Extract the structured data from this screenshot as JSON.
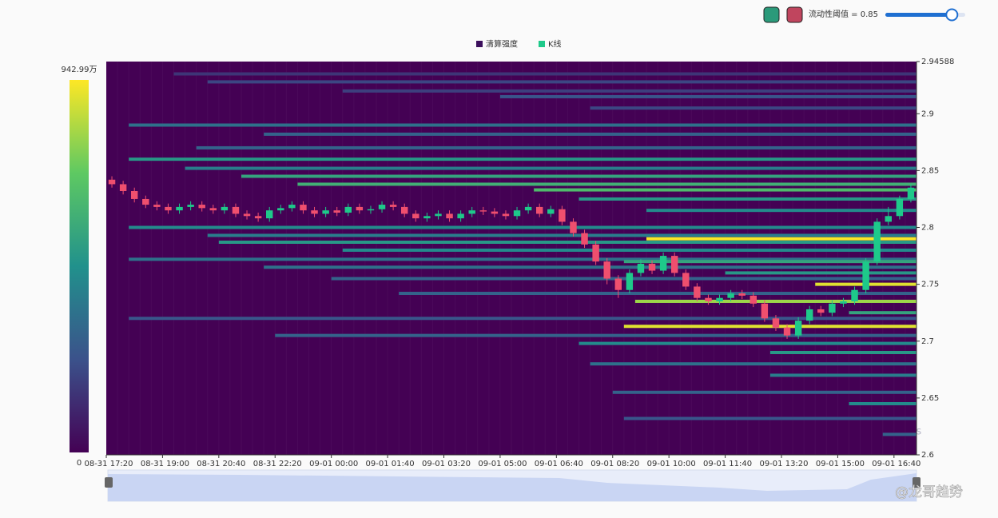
{
  "chart_data": {
    "type": "liquidation-heatmap",
    "legend": [
      {
        "name": "清算强度",
        "color": "#3b0f5c"
      },
      {
        "name": "K线",
        "color": "#1ec98a"
      }
    ],
    "threshold": {
      "value": 0.85,
      "label": "流动性阈值 = 0.85"
    },
    "watermark": "coinglass",
    "credit": "@龙哥趋势",
    "up_color": "#1ec98a",
    "down_color": "#ef4f6e",
    "colorscale": [
      "#440154",
      "#3b528b",
      "#21918c",
      "#5ec962",
      "#fde725"
    ],
    "vlim": [
      0,
      {
        "value": 9429900,
        "label": "942.99万"
      }
    ],
    "xlim": [
      0,
      72
    ],
    "xticks": [
      {
        "value": 0,
        "label": "08-31 17:20"
      },
      {
        "value": 5,
        "label": "08-31 19:00"
      },
      {
        "value": 10,
        "label": "08-31 20:40"
      },
      {
        "value": 15,
        "label": "08-31 22:20"
      },
      {
        "value": 20,
        "label": "09-01 00:00"
      },
      {
        "value": 25,
        "label": "09-01 01:40"
      },
      {
        "value": 30,
        "label": "09-01 03:20"
      },
      {
        "value": 35,
        "label": "09-01 05:00"
      },
      {
        "value": 40,
        "label": "09-01 06:40"
      },
      {
        "value": 45,
        "label": "09-01 08:20"
      },
      {
        "value": 50,
        "label": "09-01 10:00"
      },
      {
        "value": 55,
        "label": "09-01 11:40"
      },
      {
        "value": 60,
        "label": "09-01 13:20"
      },
      {
        "value": 65,
        "label": "09-01 15:00"
      },
      {
        "value": 70,
        "label": "09-01 16:40"
      }
    ],
    "ylim": [
      2.6,
      2.94588
    ],
    "yticks": [
      2.6,
      2.65,
      2.7,
      2.75,
      2.8,
      2.85,
      2.9,
      2.94588
    ],
    "bands": {
      "price": [
        2.935,
        2.928,
        2.92,
        2.915,
        2.905,
        2.89,
        2.882,
        2.87,
        2.86,
        2.852,
        2.845,
        2.838,
        2.833,
        2.825,
        2.815,
        2.8,
        2.793,
        2.787,
        2.79,
        2.78,
        2.772,
        2.77,
        2.765,
        2.76,
        2.75,
        2.755,
        2.742,
        2.735,
        2.725,
        2.72,
        2.713,
        2.705,
        2.698,
        2.69,
        2.68,
        2.67,
        2.655,
        2.645,
        2.632,
        2.618
      ],
      "start": [
        6,
        9,
        21,
        35,
        43,
        2,
        14,
        8,
        2,
        7,
        12,
        17,
        38,
        42,
        48,
        2,
        9,
        10,
        48,
        21,
        2,
        46,
        14,
        55,
        63,
        20,
        26,
        47,
        66,
        2,
        46,
        15,
        42,
        59,
        43,
        59,
        45,
        66,
        46,
        69
      ],
      "intensity": [
        1500000,
        2000000,
        1800000,
        2500000,
        2000000,
        3500000,
        3000000,
        3000000,
        5000000,
        4000000,
        5500000,
        6000000,
        6500000,
        5000000,
        4500000,
        4500000,
        4000000,
        5000000,
        9400000,
        4500000,
        3500000,
        5500000,
        3500000,
        5000000,
        9000000,
        3000000,
        3000000,
        8000000,
        5500000,
        2500000,
        9000000,
        3000000,
        4500000,
        5000000,
        3500000,
        4000000,
        3000000,
        4500000,
        2500000,
        3000000
      ]
    },
    "candles": {
      "open": [
        2.842,
        2.838,
        2.832,
        2.825,
        2.82,
        2.818,
        2.815,
        2.818,
        2.82,
        2.817,
        2.815,
        2.818,
        2.812,
        2.81,
        2.808,
        2.815,
        2.817,
        2.82,
        2.815,
        2.812,
        2.815,
        2.813,
        2.818,
        2.815,
        2.816,
        2.82,
        2.818,
        2.812,
        2.808,
        2.81,
        2.812,
        2.808,
        2.812,
        2.815,
        2.814,
        2.812,
        2.81,
        2.815,
        2.818,
        2.812,
        2.816,
        2.805,
        2.795,
        2.785,
        2.77,
        2.755,
        2.745,
        2.76,
        2.768,
        2.762,
        2.775,
        2.76,
        2.748,
        2.738,
        2.735,
        2.738,
        2.742,
        2.74,
        2.733,
        2.72,
        2.712,
        2.705,
        2.718,
        2.728,
        2.725,
        2.733,
        2.735,
        2.745,
        2.77,
        2.805,
        2.81,
        2.825
      ],
      "high": [
        2.845,
        2.841,
        2.835,
        2.828,
        2.823,
        2.821,
        2.821,
        2.823,
        2.823,
        2.82,
        2.821,
        2.821,
        2.815,
        2.813,
        2.818,
        2.82,
        2.823,
        2.823,
        2.818,
        2.818,
        2.818,
        2.821,
        2.821,
        2.819,
        2.823,
        2.823,
        2.821,
        2.815,
        2.813,
        2.815,
        2.815,
        2.815,
        2.818,
        2.818,
        2.817,
        2.815,
        2.818,
        2.821,
        2.821,
        2.819,
        2.819,
        2.808,
        2.798,
        2.788,
        2.773,
        2.758,
        2.763,
        2.772,
        2.771,
        2.778,
        2.778,
        2.763,
        2.751,
        2.741,
        2.741,
        2.745,
        2.745,
        2.743,
        2.736,
        2.723,
        2.715,
        2.721,
        2.731,
        2.731,
        2.736,
        2.738,
        2.748,
        2.773,
        2.808,
        2.818,
        2.828,
        2.838
      ],
      "low": [
        2.835,
        2.829,
        2.822,
        2.817,
        2.815,
        2.812,
        2.812,
        2.815,
        2.814,
        2.812,
        2.812,
        2.809,
        2.807,
        2.805,
        2.805,
        2.812,
        2.814,
        2.812,
        2.809,
        2.809,
        2.81,
        2.81,
        2.812,
        2.812,
        2.813,
        2.815,
        2.809,
        2.805,
        2.805,
        2.807,
        2.805,
        2.805,
        2.809,
        2.811,
        2.809,
        2.807,
        2.807,
        2.812,
        2.809,
        2.809,
        2.802,
        2.792,
        2.782,
        2.767,
        2.75,
        2.738,
        2.742,
        2.757,
        2.759,
        2.759,
        2.757,
        2.745,
        2.735,
        2.732,
        2.732,
        2.735,
        2.737,
        2.73,
        2.717,
        2.709,
        2.702,
        2.702,
        2.715,
        2.722,
        2.722,
        2.73,
        2.732,
        2.742,
        2.767,
        2.802,
        2.807,
        2.822
      ],
      "close": [
        2.838,
        2.832,
        2.825,
        2.82,
        2.818,
        2.815,
        2.818,
        2.82,
        2.817,
        2.815,
        2.818,
        2.812,
        2.81,
        2.808,
        2.815,
        2.817,
        2.82,
        2.815,
        2.812,
        2.815,
        2.813,
        2.818,
        2.815,
        2.816,
        2.82,
        2.818,
        2.812,
        2.808,
        2.81,
        2.812,
        2.808,
        2.812,
        2.815,
        2.814,
        2.812,
        2.81,
        2.815,
        2.818,
        2.812,
        2.816,
        2.805,
        2.795,
        2.785,
        2.77,
        2.755,
        2.745,
        2.76,
        2.768,
        2.762,
        2.775,
        2.76,
        2.748,
        2.738,
        2.735,
        2.738,
        2.742,
        2.74,
        2.733,
        2.72,
        2.712,
        2.705,
        2.718,
        2.728,
        2.725,
        2.733,
        2.735,
        2.745,
        2.77,
        2.805,
        2.81,
        2.825,
        2.835
      ]
    }
  }
}
